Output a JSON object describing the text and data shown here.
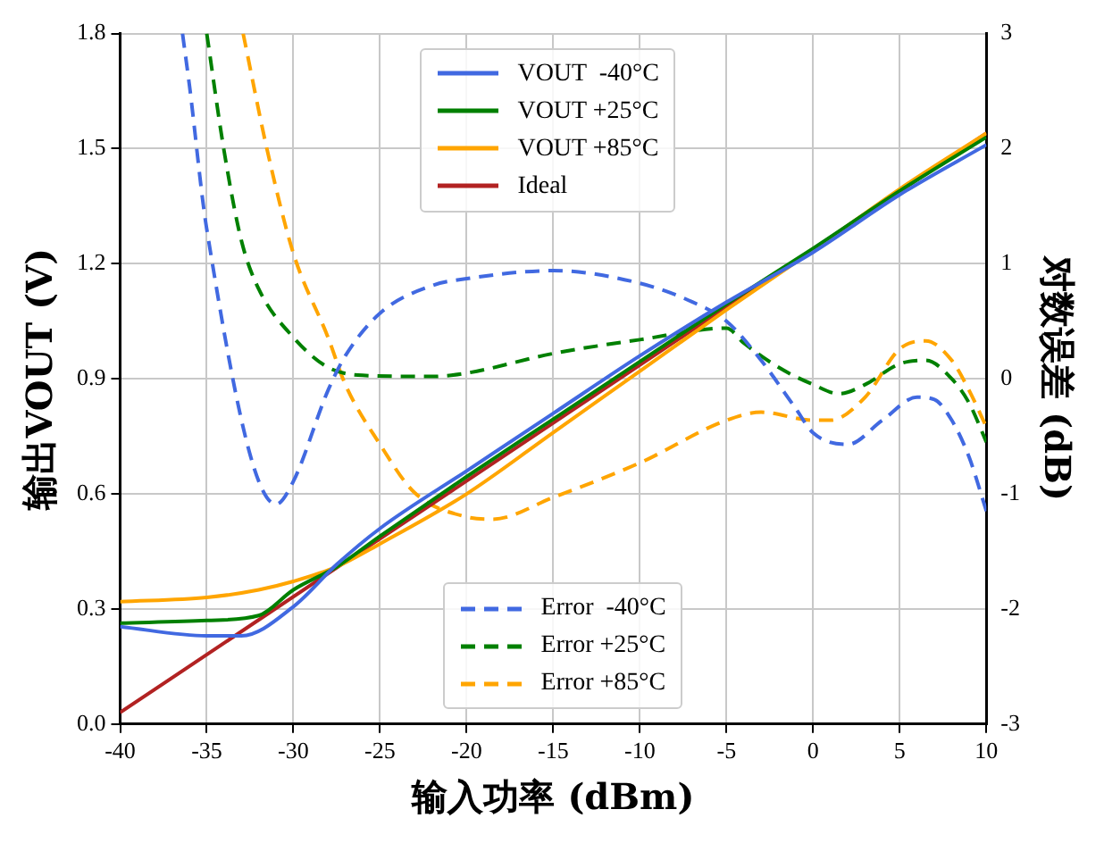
{
  "chart_data": {
    "type": "line",
    "xlabel": "输入功率 (dBm)",
    "ylabel": "输出VOUT (V)",
    "y2label": "对数误差 (dB)",
    "xlim": [
      -40,
      10
    ],
    "xticks": [
      -40,
      -35,
      -30,
      -25,
      -20,
      -15,
      -10,
      -5,
      0,
      5,
      10
    ],
    "ylim": [
      0,
      1.8
    ],
    "yticks": [
      {
        "value": 0,
        "label": "0.0"
      },
      {
        "value": 0.3,
        "label": "0.3"
      },
      {
        "value": 0.6,
        "label": "0.6"
      },
      {
        "value": 0.9,
        "label": "0.9"
      },
      {
        "value": 1.2,
        "label": "1.2"
      },
      {
        "value": 1.5,
        "label": "1.5"
      },
      {
        "value": 1.8,
        "label": "1.8"
      }
    ],
    "y2lim": [
      -3,
      3
    ],
    "y2ticks": [
      -3,
      -2,
      -1,
      0,
      1,
      2,
      3
    ],
    "grid": true,
    "legend": "top",
    "marker": "none",
    "series": [
      {
        "name": "VOUT  -40°C",
        "color": "#4169e1",
        "line_style": "solid",
        "x": [
          -40,
          -35,
          -33,
          -30,
          -27.5,
          -25,
          -20,
          -15,
          -10,
          -5,
          0,
          5,
          10
        ],
        "values": [
          0.254,
          0.23,
          0.23,
          0.306,
          0.416,
          0.51,
          0.66,
          0.81,
          0.96,
          1.1,
          1.23,
          1.38,
          1.51
        ]
      },
      {
        "name": "VOUT +25°C",
        "color": "#008000",
        "line_style": "solid",
        "x": [
          -40,
          -35,
          -32,
          -30,
          -27.5,
          -25,
          -20,
          -15,
          -10,
          -5,
          0,
          5,
          10
        ],
        "values": [
          0.263,
          0.27,
          0.283,
          0.35,
          0.41,
          0.49,
          0.645,
          0.795,
          0.945,
          1.095,
          1.24,
          1.39,
          1.53
        ]
      },
      {
        "name": "VOUT +85°C",
        "color": "#ffa500",
        "line_style": "solid",
        "x": [
          -40,
          -35,
          -32,
          -30,
          -27.5,
          -25,
          -20,
          -15,
          -10,
          -5,
          0,
          5,
          10
        ],
        "values": [
          0.319,
          0.33,
          0.35,
          0.372,
          0.41,
          0.47,
          0.6,
          0.76,
          0.92,
          1.08,
          1.235,
          1.395,
          1.54
        ]
      },
      {
        "name": "Ideal",
        "color": "#b22222",
        "line_style": "solid",
        "x": [
          -40,
          10
        ],
        "values": [
          0.03,
          1.54
        ]
      },
      {
        "name": "Error  -40°C",
        "color": "#4169e1",
        "line_style": "dashed",
        "axis": "y2",
        "x": [
          -36.4,
          -36,
          -35,
          -31,
          -30,
          -28,
          -27,
          -25,
          -22,
          -20,
          -15,
          -10,
          -7,
          -5,
          -3,
          -1,
          0,
          2,
          4,
          6,
          7,
          8,
          9,
          10
        ],
        "values": [
          3,
          2.55,
          1.3,
          -1.09,
          -0.89,
          -0.1,
          0.2,
          0.57,
          0.81,
          0.87,
          0.94,
          0.83,
          0.67,
          0.5,
          0.16,
          -0.26,
          -0.47,
          -0.57,
          -0.36,
          -0.16,
          -0.18,
          -0.36,
          -0.68,
          -1.15
        ]
      },
      {
        "name": "Error +25°C",
        "color": "#008000",
        "line_style": "dashed",
        "axis": "y2",
        "x": [
          -35,
          -34,
          -33,
          -32,
          -30,
          -28,
          -26,
          -22,
          -20,
          -15,
          -10,
          -5,
          -4,
          -2,
          0,
          1.5,
          3,
          5,
          6.5,
          8,
          9,
          10
        ],
        "values": [
          3,
          1.98,
          1.2,
          0.78,
          0.36,
          0.1,
          0.03,
          0.02,
          0.05,
          0.22,
          0.34,
          0.44,
          0.31,
          0.1,
          -0.05,
          -0.13,
          -0.05,
          0.13,
          0.16,
          0,
          -0.21,
          -0.55
        ]
      },
      {
        "name": "Error +85°C",
        "color": "#ffa500",
        "line_style": "dashed",
        "axis": "y2",
        "x": [
          -32.9,
          -31.5,
          -30,
          -28,
          -27,
          -25,
          -23,
          -20,
          -18.5,
          -15,
          -10,
          -5,
          -3,
          0,
          1,
          3,
          5,
          6.5,
          8,
          9,
          10
        ],
        "values": [
          3,
          1.98,
          1.09,
          0.36,
          -0.05,
          -0.57,
          -0.99,
          -1.2,
          -1.22,
          -1.03,
          -0.73,
          -0.36,
          -0.29,
          -0.36,
          -0.36,
          -0.16,
          0.26,
          0.33,
          0.16,
          -0.1,
          -0.42
        ]
      }
    ]
  }
}
